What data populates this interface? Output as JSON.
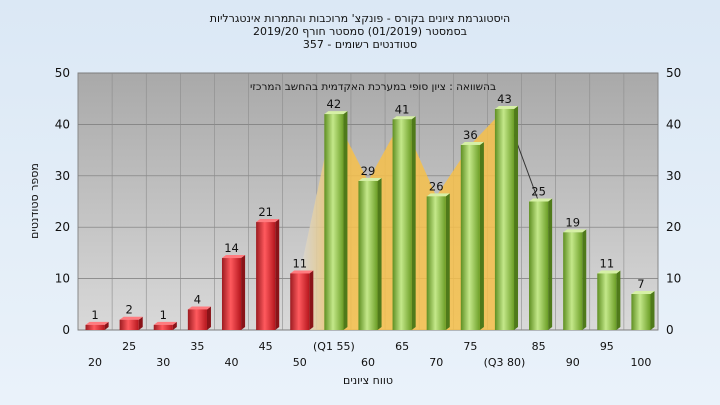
{
  "title_lines": [
    "היסטוגרמת ציונים בקורס - פונקצ' מרוכבות והתמרות אינטגרליות",
    "בסמסטר  (01/2019)  סמסטר חורף  2019/20",
    "סטודנטים רשומים - 357"
  ],
  "chart_data": {
    "type": "bar",
    "title": "היסטוגרמת ציונים בקורס - פונקצ' מרוכבות והתמרות אינטגרליות",
    "xlabel": "טווח ציונים",
    "ylabel": "מספר סטודנטים",
    "ylim": [
      0,
      50
    ],
    "yticks": [
      0,
      10,
      20,
      30,
      40,
      50
    ],
    "grid": true,
    "annotation": "בהשוואה : ציון סופי במערכת האקדמית בהחשב המרכזי",
    "categories": [
      "20",
      "25",
      "30",
      "35",
      "40",
      "45",
      "50",
      "(Q1 55)",
      "60",
      "65",
      "70",
      "75",
      "(Q3 80)",
      "85",
      "90",
      "95",
      "100"
    ],
    "values": [
      1,
      2,
      1,
      4,
      14,
      21,
      11,
      42,
      29,
      41,
      26,
      36,
      43,
      25,
      19,
      11,
      7
    ],
    "bar_colors": {
      "low": "#e8323a",
      "high": "#9ccc4a"
    },
    "bar_groups": [
      "low",
      "low",
      "low",
      "low",
      "low",
      "low",
      "low",
      "high",
      "high",
      "high",
      "high",
      "high",
      "high",
      "high",
      "high",
      "high",
      "high"
    ],
    "comparison_area": {
      "color": "#f6c04a",
      "x_start": "50",
      "x_end": "(Q3 80)",
      "y_start": 11,
      "y_end": 42
    }
  }
}
